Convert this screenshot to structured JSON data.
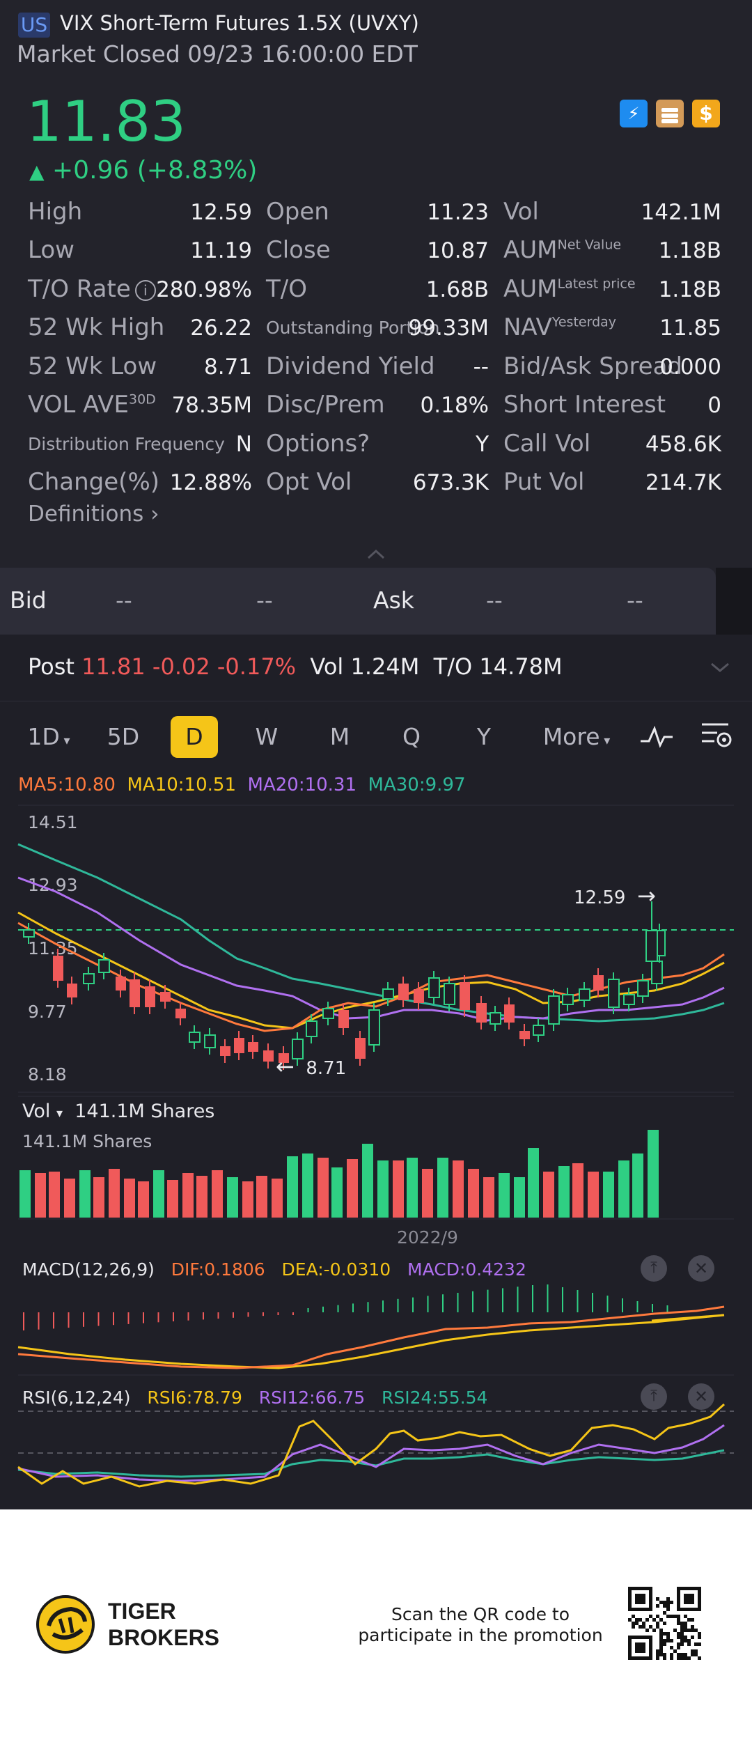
{
  "header": {
    "market_badge": "US",
    "name": "VIX Short-Term Futures 1.5X",
    "ticker": "(UVXY)",
    "status": "Market Closed 09/23 16:00:00 EDT"
  },
  "quote": {
    "price": "11.83",
    "change": "+0.96 (+8.83%)",
    "arrow": "▲"
  },
  "icons": {
    "colors": {
      "blue": "#1e8cf0",
      "tan": "#d39a58",
      "gold": "#f2a71b"
    },
    "names": [
      "lightning-icon",
      "education-icon",
      "dollar-icon"
    ],
    "icon1": "⚡",
    "icon3": "$"
  },
  "stats": {
    "col1": [
      {
        "label": "High",
        "value": "12.59"
      },
      {
        "label": "Low",
        "value": "11.19"
      },
      {
        "label": "T/O Rate",
        "value": "280.98%"
      },
      {
        "label": "52 Wk High",
        "value": "26.22"
      },
      {
        "label": "52 Wk Low",
        "value": "8.71"
      },
      {
        "label": "VOL AVE",
        "sup": "30D",
        "value": "78.35M"
      },
      {
        "label": "Distribution Frequency",
        "value": "N"
      },
      {
        "label": "Change(%)",
        "value": "12.88%"
      }
    ],
    "col2": [
      {
        "label": "Open",
        "value": "11.23"
      },
      {
        "label": "Close",
        "value": "10.87"
      },
      {
        "label": "T/O",
        "value": "1.68B"
      },
      {
        "label": "Outstanding Portion",
        "value": "99.33M"
      },
      {
        "label": "Dividend Yield",
        "value": "--"
      },
      {
        "label": "Disc/Prem",
        "value": "0.18%"
      },
      {
        "label": "Options?",
        "value": "Y"
      },
      {
        "label": "Opt Vol",
        "value": "673.3K"
      }
    ],
    "col3": [
      {
        "label": "Vol",
        "value": "142.1M"
      },
      {
        "label": "AUM",
        "sup": "Net Value",
        "value": "1.18B"
      },
      {
        "label": "AUM",
        "sup": "Latest price",
        "value": "1.18B"
      },
      {
        "label": "NAV",
        "sup": "Yesterday",
        "value": "11.85"
      },
      {
        "label": "Bid/Ask Spread",
        "value": "0.000"
      },
      {
        "label": "Short Interest",
        "value": "0"
      },
      {
        "label": "Call Vol",
        "value": "458.6K"
      },
      {
        "label": "Put Vol",
        "value": "214.7K"
      }
    ],
    "definitions": "Definitions"
  },
  "bidask": {
    "bid_label": "Bid",
    "bid_v1": "--",
    "bid_v2": "--",
    "ask_label": "Ask",
    "ask_v1": "--",
    "ask_v2": "--"
  },
  "post": {
    "label": "Post",
    "price": "11.81",
    "change": "-0.02",
    "pct": "-0.17%",
    "vol_label": "Vol",
    "vol": "1.24M",
    "to_label": "T/O",
    "to": "14.78M"
  },
  "tabs": {
    "t1": "1D",
    "t2": "5D",
    "t3": "D",
    "t4": "W",
    "t5": "M",
    "t6": "Q",
    "t7": "Y",
    "more": "More"
  },
  "ma": {
    "ma5": "MA5:10.80",
    "ma10": "MA10:10.51",
    "ma20": "MA20:10.31",
    "ma30": "MA30:9.97",
    "colors": {
      "ma5": "#ff7a3d",
      "ma10": "#f5c518",
      "ma20": "#b070f0",
      "ma30": "#2fb89a"
    }
  },
  "price_axis": {
    "p1": "14.51",
    "p2": "12.93",
    "p3": "11.35",
    "p4": "9.77",
    "p5": "8.18"
  },
  "annotations": {
    "high": "12.59",
    "low": "8.71",
    "arrow_right": "→",
    "arrow_left": "←"
  },
  "volume": {
    "label": "Vol",
    "value": "141.1M Shares",
    "axis_label": "141.1M Shares",
    "date_label": "2022/9"
  },
  "macd": {
    "title": "MACD(12,26,9)",
    "dif": "DIF:0.1806",
    "dea": "DEA:-0.0310",
    "macd": "MACD:0.4232"
  },
  "rsi": {
    "title": "RSI(6,12,24)",
    "rsi6": "RSI6:78.79",
    "rsi12": "RSI12:66.75",
    "rsi24": "RSI24:55.54"
  },
  "footer": {
    "brand1": "TIGER",
    "brand2": "BROKERS",
    "qr1": "Scan the QR code to",
    "qr2": "participate in the promotion"
  }
}
